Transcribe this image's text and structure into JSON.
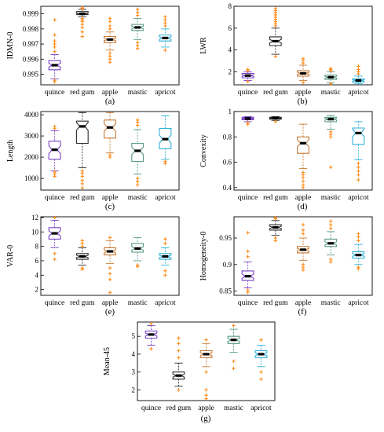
{
  "colors": {
    "quince": "#7a44c8",
    "red gum": "#2b2b2b",
    "apple": "#c77a35",
    "mastic": "#5a9a86",
    "apricot": "#2fb0d8",
    "outlier": "#ff8c1a"
  },
  "chart_data": [
    {
      "panel": "(a)",
      "type": "box",
      "ylabel": "IDMN-0",
      "categories": [
        "quince",
        "red gum",
        "apple",
        "mastic",
        "apricot"
      ],
      "ylim": [
        0.9943,
        0.9995
      ],
      "yticks": [
        0.995,
        0.996,
        0.997,
        0.998,
        0.999
      ],
      "ytick_labels": [
        "0.995",
        "0.996",
        "0.997",
        "0.998",
        "0.999"
      ],
      "boxes": [
        {
          "q1": 0.9953,
          "median": 0.9956,
          "q3": 0.9959,
          "whislo": 0.9947,
          "whishi": 0.9963,
          "outliers": [
            0.9945,
            0.9946,
            0.9965,
            0.9968,
            0.997,
            0.9972,
            0.9976,
            0.9986
          ]
        },
        {
          "q1": 0.99895,
          "median": 0.999,
          "q3": 0.99915,
          "whislo": 0.9988,
          "whishi": 0.9993,
          "outliers": [
            0.9975,
            0.9978,
            0.9981,
            0.9983,
            0.9985,
            0.9986,
            0.9987,
            0.99935,
            0.9994
          ]
        },
        {
          "q1": 0.9971,
          "median": 0.9973,
          "q3": 0.9975,
          "whislo": 0.9966,
          "whishi": 0.9978,
          "outliers": [
            0.9958,
            0.996,
            0.9962,
            0.9964,
            0.998,
            0.9982,
            0.9985,
            0.9987
          ]
        },
        {
          "q1": 0.9979,
          "median": 0.9981,
          "q3": 0.9983,
          "whislo": 0.9973,
          "whishi": 0.9987,
          "outliers": [
            0.9967,
            0.9969,
            0.9971,
            0.9989,
            0.9991,
            0.9993
          ]
        },
        {
          "q1": 0.9972,
          "median": 0.9974,
          "q3": 0.9976,
          "whislo": 0.9968,
          "whishi": 0.998,
          "outliers": [
            0.9966,
            0.9982,
            0.9984,
            0.9986,
            0.9988
          ]
        }
      ]
    },
    {
      "panel": "(b)",
      "type": "box",
      "ylabel": "LWR",
      "categories": [
        "quince",
        "red gum",
        "apple",
        "mastic",
        "apricot"
      ],
      "ylim": [
        0.8,
        8.0
      ],
      "yticks": [
        2,
        4,
        6,
        8
      ],
      "ytick_labels": [
        "2",
        "4",
        "6",
        "8"
      ],
      "boxes": [
        {
          "q1": 1.45,
          "median": 1.65,
          "q3": 1.85,
          "whislo": 1.2,
          "whishi": 2.0,
          "outliers": [
            1.1,
            2.1,
            2.2
          ]
        },
        {
          "q1": 4.4,
          "median": 4.8,
          "q3": 5.2,
          "whislo": 3.6,
          "whishi": 6.0,
          "outliers": [
            3.4,
            6.2,
            6.4,
            6.6,
            6.8,
            7.0,
            7.2,
            7.4,
            7.6,
            7.8
          ]
        },
        {
          "q1": 1.6,
          "median": 1.85,
          "q3": 2.1,
          "whislo": 1.2,
          "whishi": 2.6,
          "outliers": [
            1.0,
            2.8,
            3.0,
            3.2
          ]
        },
        {
          "q1": 1.3,
          "median": 1.5,
          "q3": 1.7,
          "whislo": 1.0,
          "whishi": 2.0,
          "outliers": [
            0.9,
            2.1,
            2.2,
            2.3
          ]
        },
        {
          "q1": 1.05,
          "median": 1.2,
          "q3": 1.35,
          "whislo": 0.9,
          "whishi": 1.6,
          "outliers": [
            1.8,
            2.0,
            2.2,
            2.5
          ]
        }
      ]
    },
    {
      "panel": "(c)",
      "type": "box",
      "ylabel": "Length",
      "categories": [
        "quince",
        "red gum",
        "apple",
        "mastic",
        "apricot"
      ],
      "ylim": [
        450,
        4150
      ],
      "yticks": [
        1000,
        2000,
        3000,
        4000
      ],
      "ytick_labels": [
        "1000",
        "2000",
        "3000",
        "4000"
      ],
      "boxes": [
        {
          "q1": 1900,
          "median": 2350,
          "q3": 2750,
          "whislo": 1350,
          "whishi": 3250,
          "outliers": [
            1100,
            1200,
            1300,
            3350,
            3450
          ]
        },
        {
          "q1": 2650,
          "median": 3450,
          "q3": 3700,
          "whislo": 1500,
          "whishi": 4100,
          "outliers": [
            550,
            750,
            900,
            1100,
            1250,
            1350
          ]
        },
        {
          "q1": 2900,
          "median": 3400,
          "q3": 3750,
          "whislo": 2200,
          "whishi": 4100,
          "outliers": [
            2000,
            2100
          ]
        },
        {
          "q1": 1800,
          "median": 2300,
          "q3": 2650,
          "whislo": 1200,
          "whishi": 3300,
          "outliers": [
            700,
            850,
            1000,
            3500,
            3650,
            3750
          ]
        },
        {
          "q1": 2400,
          "median": 2850,
          "q3": 3350,
          "whislo": 1900,
          "whishi": 3950,
          "outliers": [
            1700,
            1800
          ]
        }
      ]
    },
    {
      "panel": "(d)",
      "type": "box",
      "ylabel": "Convexity",
      "categories": [
        "quince",
        "red gum",
        "apple",
        "mastic",
        "apricot"
      ],
      "ylim": [
        0.38,
        1.0
      ],
      "yticks": [
        0.4,
        0.6,
        0.8,
        1.0
      ],
      "ytick_labels": [
        "0.4",
        "0.6",
        "0.8",
        "1"
      ],
      "boxes": [
        {
          "q1": 0.935,
          "median": 0.945,
          "q3": 0.955,
          "whislo": 0.92,
          "whishi": 0.96,
          "outliers": [
            0.9,
            0.91
          ]
        },
        {
          "q1": 0.94,
          "median": 0.948,
          "q3": 0.955,
          "whislo": 0.93,
          "whishi": 0.96,
          "outliers": [
            0.92
          ]
        },
        {
          "q1": 0.67,
          "median": 0.75,
          "q3": 0.8,
          "whislo": 0.55,
          "whishi": 0.9,
          "outliers": [
            0.4,
            0.42,
            0.45,
            0.48,
            0.5,
            0.52
          ]
        },
        {
          "q1": 0.92,
          "median": 0.94,
          "q3": 0.955,
          "whislo": 0.86,
          "whishi": 0.97,
          "outliers": [
            0.56,
            0.8,
            0.82,
            0.84
          ]
        },
        {
          "q1": 0.74,
          "median": 0.83,
          "q3": 0.87,
          "whislo": 0.62,
          "whishi": 0.92,
          "outliers": [
            0.46,
            0.5,
            0.53,
            0.56,
            0.59
          ]
        }
      ]
    },
    {
      "panel": "(e)",
      "type": "box",
      "ylabel": "VAR-0",
      "categories": [
        "quince",
        "red gum",
        "apple",
        "mastic",
        "apricot"
      ],
      "ylim": [
        1.2,
        12.1
      ],
      "yticks": [
        2,
        4,
        6,
        8,
        10,
        12
      ],
      "ytick_labels": [
        "2",
        "4",
        "6",
        "8",
        "10",
        "12"
      ],
      "boxes": [
        {
          "q1": 9.0,
          "median": 9.8,
          "q3": 10.6,
          "whislo": 7.8,
          "whishi": 11.6,
          "outliers": [
            6.2,
            7.0,
            12.0
          ]
        },
        {
          "q1": 6.2,
          "median": 6.6,
          "q3": 7.0,
          "whislo": 5.4,
          "whishi": 7.8,
          "outliers": [
            4.8,
            5.0,
            8.0,
            8.4,
            8.8
          ]
        },
        {
          "q1": 6.8,
          "median": 7.3,
          "q3": 7.8,
          "whislo": 5.6,
          "whishi": 8.8,
          "outliers": [
            1.6,
            3.4,
            4.2,
            5.0,
            9.2
          ]
        },
        {
          "q1": 7.2,
          "median": 7.7,
          "q3": 8.4,
          "whislo": 6.0,
          "whishi": 9.2,
          "outliers": [
            5.2,
            5.4
          ]
        },
        {
          "q1": 6.2,
          "median": 6.6,
          "q3": 7.0,
          "whislo": 5.4,
          "whishi": 7.8,
          "outliers": [
            4.0,
            4.6,
            8.4,
            9.0
          ]
        }
      ]
    },
    {
      "panel": "(f)",
      "type": "box",
      "ylabel": "Homogeneity-0",
      "categories": [
        "quince",
        "red gum",
        "apple",
        "mastic",
        "apricot"
      ],
      "ylim": [
        0.842,
        0.99
      ],
      "yticks": [
        0.85,
        0.9,
        0.95
      ],
      "ytick_labels": [
        "0.85",
        "0.9",
        "0.95"
      ],
      "boxes": [
        {
          "q1": 0.87,
          "median": 0.878,
          "q3": 0.888,
          "whislo": 0.856,
          "whishi": 0.905,
          "outliers": [
            0.848,
            0.852,
            0.915,
            0.925,
            0.96
          ]
        },
        {
          "q1": 0.965,
          "median": 0.97,
          "q3": 0.975,
          "whislo": 0.955,
          "whishi": 0.983,
          "outliers": [
            0.945,
            0.95,
            0.986,
            0.988
          ]
        },
        {
          "q1": 0.922,
          "median": 0.928,
          "q3": 0.934,
          "whislo": 0.908,
          "whishi": 0.95,
          "outliers": [
            0.89,
            0.895,
            0.9,
            0.958,
            0.965,
            0.975
          ]
        },
        {
          "q1": 0.934,
          "median": 0.94,
          "q3": 0.948,
          "whislo": 0.918,
          "whishi": 0.962,
          "outliers": [
            0.905,
            0.91,
            0.968,
            0.975,
            0.982
          ]
        },
        {
          "q1": 0.912,
          "median": 0.918,
          "q3": 0.924,
          "whislo": 0.9,
          "whishi": 0.938,
          "outliers": [
            0.892,
            0.895,
            0.945,
            0.952,
            0.958
          ]
        }
      ]
    },
    {
      "panel": "(g)",
      "type": "box",
      "ylabel": "Mean-45",
      "categories": [
        "quince",
        "red gum",
        "apple",
        "mastic",
        "apricot"
      ],
      "ylim": [
        1.4,
        5.8
      ],
      "yticks": [
        2,
        3,
        4,
        5
      ],
      "ytick_labels": [
        "2",
        "3",
        "4",
        "5"
      ],
      "boxes": [
        {
          "q1": 4.9,
          "median": 5.1,
          "q3": 5.3,
          "whislo": 4.5,
          "whishi": 5.6,
          "outliers": [
            4.3,
            5.7
          ]
        },
        {
          "q1": 2.6,
          "median": 2.8,
          "q3": 3.0,
          "whislo": 2.2,
          "whishi": 3.5,
          "outliers": [
            2.0,
            3.8,
            4.2,
            4.6,
            4.9
          ]
        },
        {
          "q1": 3.8,
          "median": 4.0,
          "q3": 4.2,
          "whislo": 3.3,
          "whishi": 4.6,
          "outliers": [
            1.5,
            1.7,
            2.0,
            3.0,
            4.8
          ]
        },
        {
          "q1": 4.6,
          "median": 4.8,
          "q3": 5.0,
          "whislo": 4.1,
          "whishi": 5.4,
          "outliers": [
            3.2,
            3.6,
            5.6
          ]
        },
        {
          "q1": 3.8,
          "median": 4.0,
          "q3": 4.2,
          "whislo": 3.3,
          "whishi": 4.5,
          "outliers": [
            2.6,
            3.0,
            4.8
          ]
        }
      ]
    }
  ]
}
